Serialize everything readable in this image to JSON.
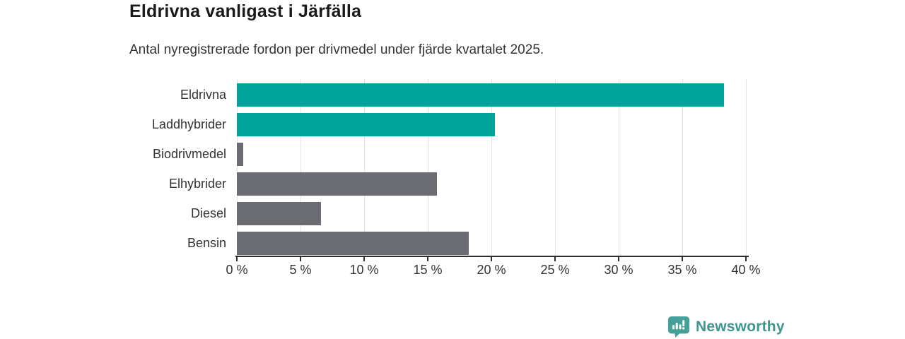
{
  "header": {
    "title": "Eldrivna vanligast i Järfälla",
    "subtitle": "Antal nyregistrerade fordon per drivmedel under fjärde kvartalet 2025."
  },
  "chart_data": {
    "type": "bar",
    "orientation": "horizontal",
    "title": "Eldrivna vanligast i Järfälla",
    "subtitle": "Antal nyregistrerade fordon per drivmedel under fjärde kvartalet 2025.",
    "categories": [
      "Eldrivna",
      "Laddhybrider",
      "Biodrivmedel",
      "Elhybrider",
      "Diesel",
      "Bensin"
    ],
    "values": [
      38.3,
      20.3,
      0.5,
      15.7,
      6.6,
      18.2
    ],
    "unit": "%",
    "bar_colors": [
      "#00a49a",
      "#00a49a",
      "#6b6b72",
      "#6b6b72",
      "#6b6b72",
      "#6b6b72"
    ],
    "xlabel": "",
    "ylabel": "",
    "xlim": [
      0,
      40
    ],
    "x_tick_labels": [
      "0 %",
      "5 %",
      "10 %",
      "15 %",
      "20 %",
      "25 %",
      "30 %",
      "35 %",
      "40 %"
    ],
    "x_tick_values": [
      0,
      5,
      10,
      15,
      20,
      25,
      30,
      35,
      40
    ],
    "grid": true,
    "legend": false
  },
  "branding": {
    "logo_text": "Newsworthy",
    "logo_icon": "newsworthy-chart-bubble-icon",
    "accent_color": "#3d968f"
  },
  "colors": {
    "teal_bar": "#00a49a",
    "gray_bar": "#6b6b72",
    "axis": "#2e2e2e",
    "gridline": "#e3e3e3",
    "title_text": "#1a1a1a",
    "body_text": "#333333",
    "background": "#ffffff"
  }
}
